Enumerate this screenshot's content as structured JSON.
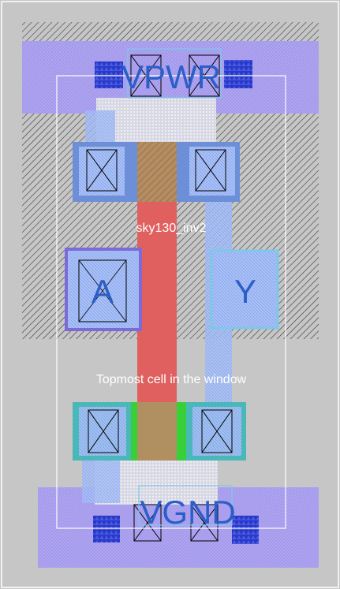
{
  "cell": {
    "name": "sky130_inv2",
    "caption": "Topmost cell in the window"
  },
  "pins": {
    "power": "VPWR",
    "ground": "VGND",
    "input": "A",
    "output": "Y"
  },
  "colors": {
    "background": "#c6c6c6",
    "nwell_hatch": "#3a3a3a",
    "met1": "#9a9cf0",
    "met1_hatch": "#5f63d8",
    "li1": "#a0b8f4",
    "diff_p": "#6d8fd8",
    "diff_n": "#4ab8b8",
    "poly": "#e06060",
    "poly_gate": "#b09060",
    "poly_n_edge": "#38d038",
    "via": "#2838c8",
    "label_text": "#2c5ec8",
    "caption_text": "#ffffff",
    "boundary": "#ffffff"
  }
}
